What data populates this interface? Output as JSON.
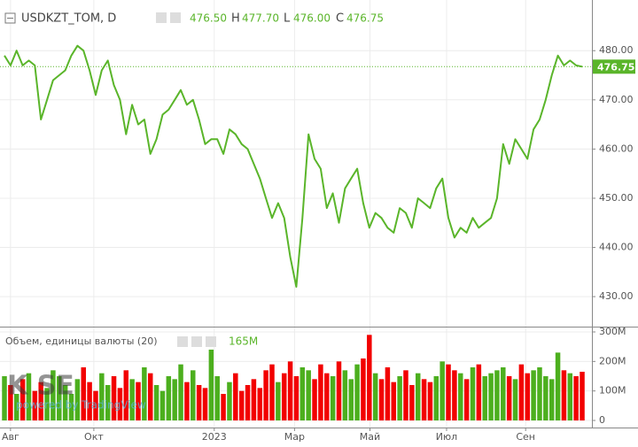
{
  "chart_data": {
    "type": "line",
    "title": "USDKZT_TOM, D",
    "ohlc": {
      "open": "476.50",
      "high_label": "H",
      "high": "477.70",
      "low_label": "L",
      "low": "476.00",
      "close_label": "C",
      "close": "476.75"
    },
    "last_price": {
      "value": 476.75,
      "label": "476.75"
    },
    "xlim": [
      -0.73,
      96.6
    ],
    "xticks": [
      {
        "value": 1,
        "label": "Авг"
      },
      {
        "value": 14.7,
        "label": "Окт"
      },
      {
        "value": 34.5,
        "label": "2023"
      },
      {
        "value": 47.7,
        "label": "Мар"
      },
      {
        "value": 60.1,
        "label": "Май"
      },
      {
        "value": 72.7,
        "label": "Июл"
      },
      {
        "value": 85.7,
        "label": "Сен"
      }
    ],
    "ylim": [
      423.9,
      490.3
    ],
    "yticks": [
      {
        "value": 430,
        "label": "430.00"
      },
      {
        "value": 440,
        "label": "440.00"
      },
      {
        "value": 450,
        "label": "450.00"
      },
      {
        "value": 460,
        "label": "460.00"
      },
      {
        "value": 470,
        "label": "470.00"
      },
      {
        "value": 480,
        "label": "480.00"
      }
    ],
    "grid": true,
    "series": [
      {
        "name": "USDKZT_TOM",
        "color": "#5ab52a",
        "values": [
          479,
          477,
          480,
          477,
          478,
          477,
          466,
          470,
          474,
          475,
          476,
          479,
          481,
          480,
          476,
          471,
          476,
          478,
          473,
          470,
          463,
          469,
          465,
          466,
          459,
          462,
          467,
          468,
          470,
          472,
          469,
          470,
          466,
          461,
          462,
          462,
          459,
          464,
          463,
          461,
          460,
          457,
          454,
          450,
          446,
          449,
          446,
          438,
          432,
          446,
          463,
          458,
          456,
          448,
          451,
          445,
          452,
          454,
          456,
          449,
          444,
          447,
          446,
          444,
          443,
          448,
          447,
          444,
          450,
          449,
          448,
          452,
          454,
          446,
          442,
          444,
          443,
          446,
          444,
          445,
          446,
          450,
          461,
          457,
          462,
          460,
          458,
          464,
          466,
          470,
          475,
          479,
          477,
          478,
          477,
          476.75
        ]
      }
    ],
    "volume": {
      "name": "Объем, единицы валюты (20)",
      "last_label": "165M",
      "up_color": "#4caf1e",
      "down_color": "#f20000",
      "y2lim": [
        -24,
        315
      ],
      "y2ticks": [
        {
          "value": 0,
          "label": "0"
        },
        {
          "value": 100,
          "label": "100M"
        },
        {
          "value": 200,
          "label": "200M"
        },
        {
          "value": 300,
          "label": "300M"
        }
      ],
      "values": [
        150,
        120,
        90,
        140,
        160,
        100,
        130,
        110,
        170,
        150,
        120,
        90,
        140,
        180,
        130,
        100,
        160,
        120,
        150,
        110,
        170,
        140,
        130,
        180,
        160,
        120,
        100,
        150,
        140,
        190,
        130,
        170,
        120,
        110,
        240,
        150,
        90,
        130,
        160,
        100,
        120,
        140,
        110,
        170,
        190,
        130,
        160,
        200,
        150,
        180,
        170,
        140,
        190,
        160,
        150,
        200,
        170,
        140,
        190,
        210,
        290,
        160,
        140,
        180,
        130,
        150,
        170,
        120,
        160,
        140,
        130,
        150,
        200,
        190,
        170,
        160,
        140,
        180,
        190,
        150,
        160,
        170,
        180,
        150,
        140,
        190,
        160,
        170,
        180,
        150,
        140,
        230,
        170,
        160,
        150,
        165
      ]
    },
    "watermark": {
      "logo": "K SE",
      "powered": "powered by TradingView"
    }
  }
}
